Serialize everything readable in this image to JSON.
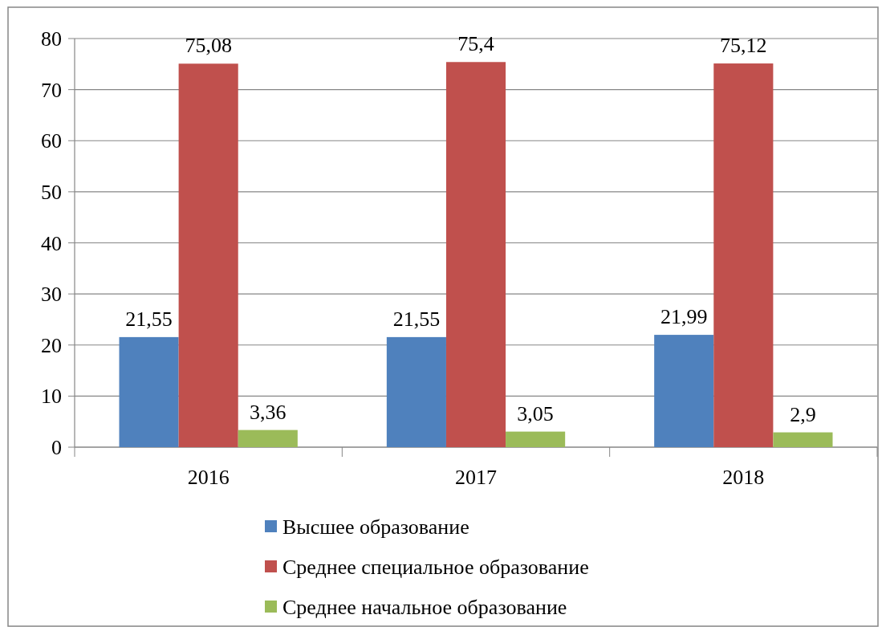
{
  "chart_data": {
    "type": "bar",
    "categories": [
      "2016",
      "2017",
      "2018"
    ],
    "series": [
      {
        "name": "Высшее образование",
        "color": "#4f81bd",
        "values": [
          21.55,
          21.55,
          21.99
        ],
        "value_labels": [
          "21,55",
          "21,55",
          "21,99"
        ]
      },
      {
        "name": "Среднее специальное образование",
        "color": "#c0504d",
        "values": [
          75.08,
          75.4,
          75.12
        ],
        "value_labels": [
          "75,08",
          "75,4",
          "75,12"
        ]
      },
      {
        "name": "Среднее начальное образование",
        "color": "#9bbb59",
        "values": [
          3.36,
          3.05,
          2.9
        ],
        "value_labels": [
          "3,36",
          "3,05",
          "2,9"
        ]
      }
    ],
    "ylim": [
      0,
      80
    ],
    "yticks": [
      0,
      10,
      20,
      30,
      40,
      50,
      60,
      70,
      80
    ],
    "grid": "y",
    "legend": "bottom"
  }
}
